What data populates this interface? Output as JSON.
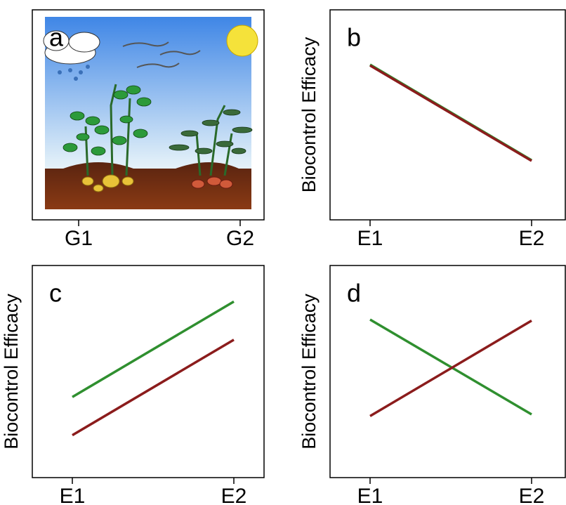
{
  "chart_data": [
    {
      "type": "illustration",
      "panel_label": "a",
      "categories": [
        "G1",
        "G2"
      ]
    },
    {
      "type": "line",
      "panel_label": "b",
      "y_label": "Biocontrol Efficacy",
      "categories": [
        "E1",
        "E2"
      ],
      "ylim": [
        0,
        10
      ],
      "series": [
        {
          "color": "#2f8f2f",
          "values": [
            7.39,
            2.84
          ]
        },
        {
          "color": "#8b1c1c",
          "values": [
            7.35,
            2.81
          ]
        }
      ]
    },
    {
      "type": "line",
      "panel_label": "c",
      "y_label": "Biocontrol Efficacy",
      "categories": [
        "E1",
        "E2"
      ],
      "ylim": [
        0,
        10
      ],
      "series": [
        {
          "color": "#2f8f2f",
          "values": [
            3.8,
            8.3
          ]
        },
        {
          "color": "#8b1c1c",
          "values": [
            2.0,
            6.5
          ]
        }
      ]
    },
    {
      "type": "line",
      "panel_label": "d",
      "y_label": "Biocontrol Efficacy",
      "categories": [
        "E1",
        "E2"
      ],
      "ylim": [
        0,
        10
      ],
      "series": [
        {
          "color": "#2f8f2f",
          "values": [
            7.45,
            2.98
          ]
        },
        {
          "color": "#8b1c1c",
          "values": [
            2.9,
            7.4
          ]
        }
      ]
    }
  ]
}
